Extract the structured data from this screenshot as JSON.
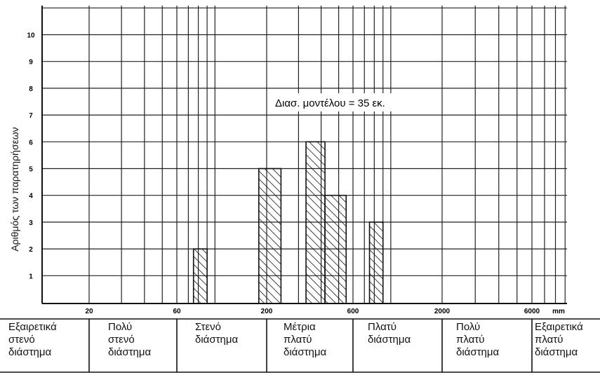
{
  "chart_data": {
    "type": "bar",
    "ylabel": "Αριθμός των παρατηρήσεων",
    "y_ticks": [
      "1",
      "2",
      "3",
      "4",
      "5",
      "6",
      "7",
      "8",
      "9",
      "10"
    ],
    "ylim": [
      0,
      11
    ],
    "x_scale": "log",
    "x_ticks": [
      "20",
      "60",
      "200",
      "600",
      "2000",
      "6000"
    ],
    "x_unit": "mm",
    "annotation": "Διασ. μοντέλου = 35 εκ.",
    "bars": [
      {
        "x0": 75,
        "x1": 90,
        "value": 2
      },
      {
        "x0": 180,
        "x1": 240,
        "value": 5
      },
      {
        "x0": 330,
        "x1": 420,
        "value": 6
      },
      {
        "x0": 420,
        "x1": 550,
        "value": 4
      },
      {
        "x0": 750,
        "x1": 900,
        "value": 3
      }
    ],
    "grid": true
  },
  "categories": [
    "Εξαιρετικά\nστενό\nδιάστημα",
    "Πολύ\nστενό\nδιάστημα",
    "Στενό\nδιάστημα",
    "Μέτρια\nπλατύ\nδιάστημα",
    "Πλατύ\nδιάστημα",
    "Πολύ\nπλατύ\nδιάστημα",
    "Εξαιρετικά\nπλατύ\nδιάστημα"
  ]
}
